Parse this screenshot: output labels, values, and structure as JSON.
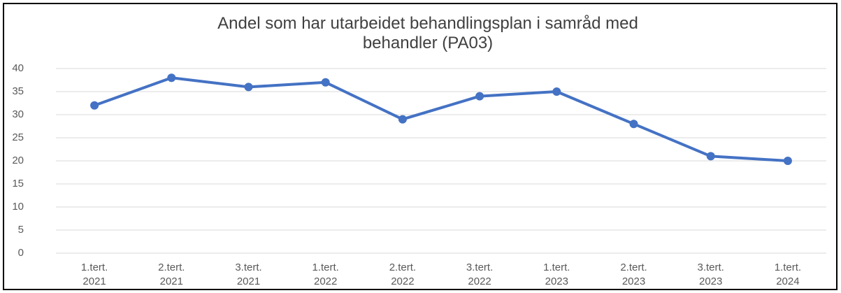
{
  "chart_data": {
    "type": "line",
    "title": "Andel som har utarbeidet behandlingsplan i samråd med behandler (PA03)",
    "categories": [
      "1.tert. 2021",
      "2.tert. 2021",
      "3.tert. 2021",
      "1.tert. 2022",
      "2.tert. 2022",
      "3.tert. 2022",
      "1.tert. 2023",
      "2.tert. 2023",
      "3.tert. 2023",
      "1.tert. 2024"
    ],
    "values": [
      32,
      38,
      36,
      37,
      29,
      34,
      35,
      28,
      21,
      20
    ],
    "color": "#4472c4",
    "ylim": [
      0,
      40
    ],
    "yticks": [
      0,
      5,
      10,
      15,
      20,
      25,
      30,
      35,
      40
    ],
    "grid": true
  }
}
